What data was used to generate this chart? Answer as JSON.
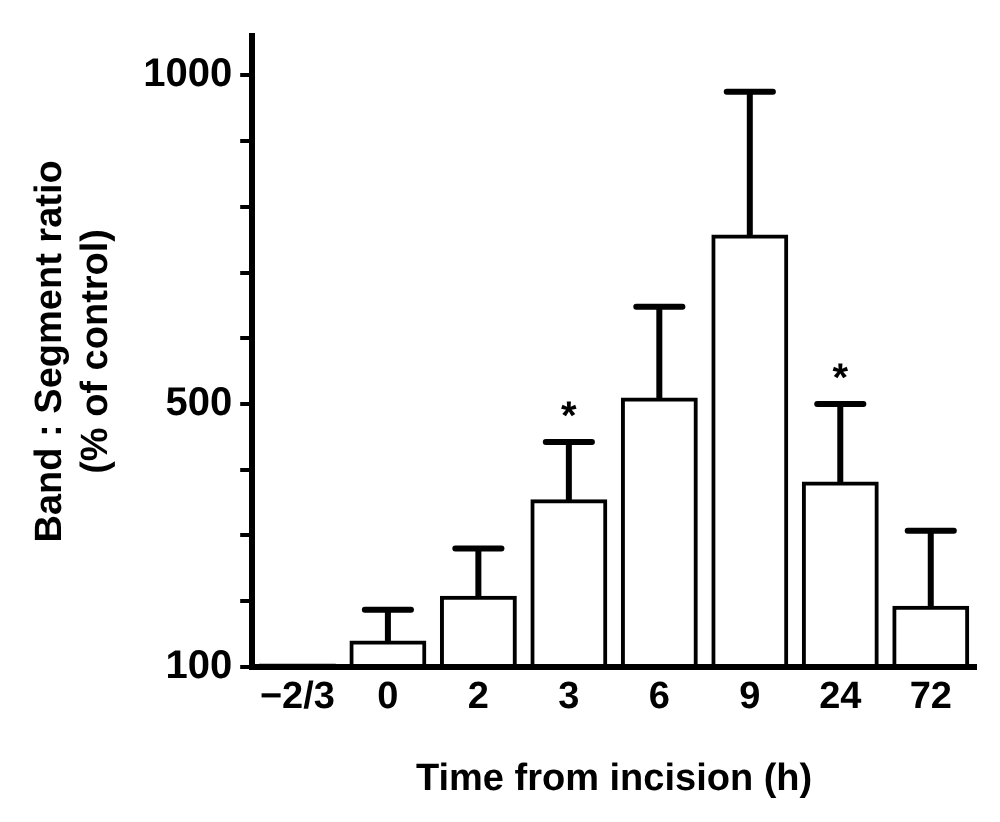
{
  "chart_data": {
    "type": "bar",
    "xlabel": "Time from incision (h)",
    "ylabel": "Band : Segment ratio\n(% of control)",
    "categories": [
      "−2/3",
      "0",
      "2",
      "3",
      "6",
      "9",
      "24",
      "72"
    ],
    "values": [
      105,
      140,
      208,
      355,
      510,
      758,
      382,
      193
    ],
    "errors": [
      null,
      [
        140,
        187
      ],
      [
        208,
        280
      ],
      [
        355,
        442
      ],
      [
        510,
        648
      ],
      [
        758,
        975
      ],
      [
        382,
        500
      ],
      [
        193,
        307
      ]
    ],
    "color": "#000000",
    "ylim": [
      100,
      1060
    ],
    "yticks": [
      100,
      {
        "value": 200,
        "label": null
      },
      {
        "value": 300,
        "label": null
      },
      {
        "value": 400,
        "label": null
      },
      500,
      {
        "value": 600,
        "label": null
      },
      {
        "value": 700,
        "label": null
      },
      {
        "value": 800,
        "label": null
      },
      {
        "value": 900,
        "label": null
      },
      1000
    ],
    "annotations": [
      {
        "text": "*",
        "x": "3",
        "y": 442
      },
      {
        "text": "*",
        "x": "24",
        "y": 500
      }
    ],
    "grid": false,
    "legend": false
  }
}
